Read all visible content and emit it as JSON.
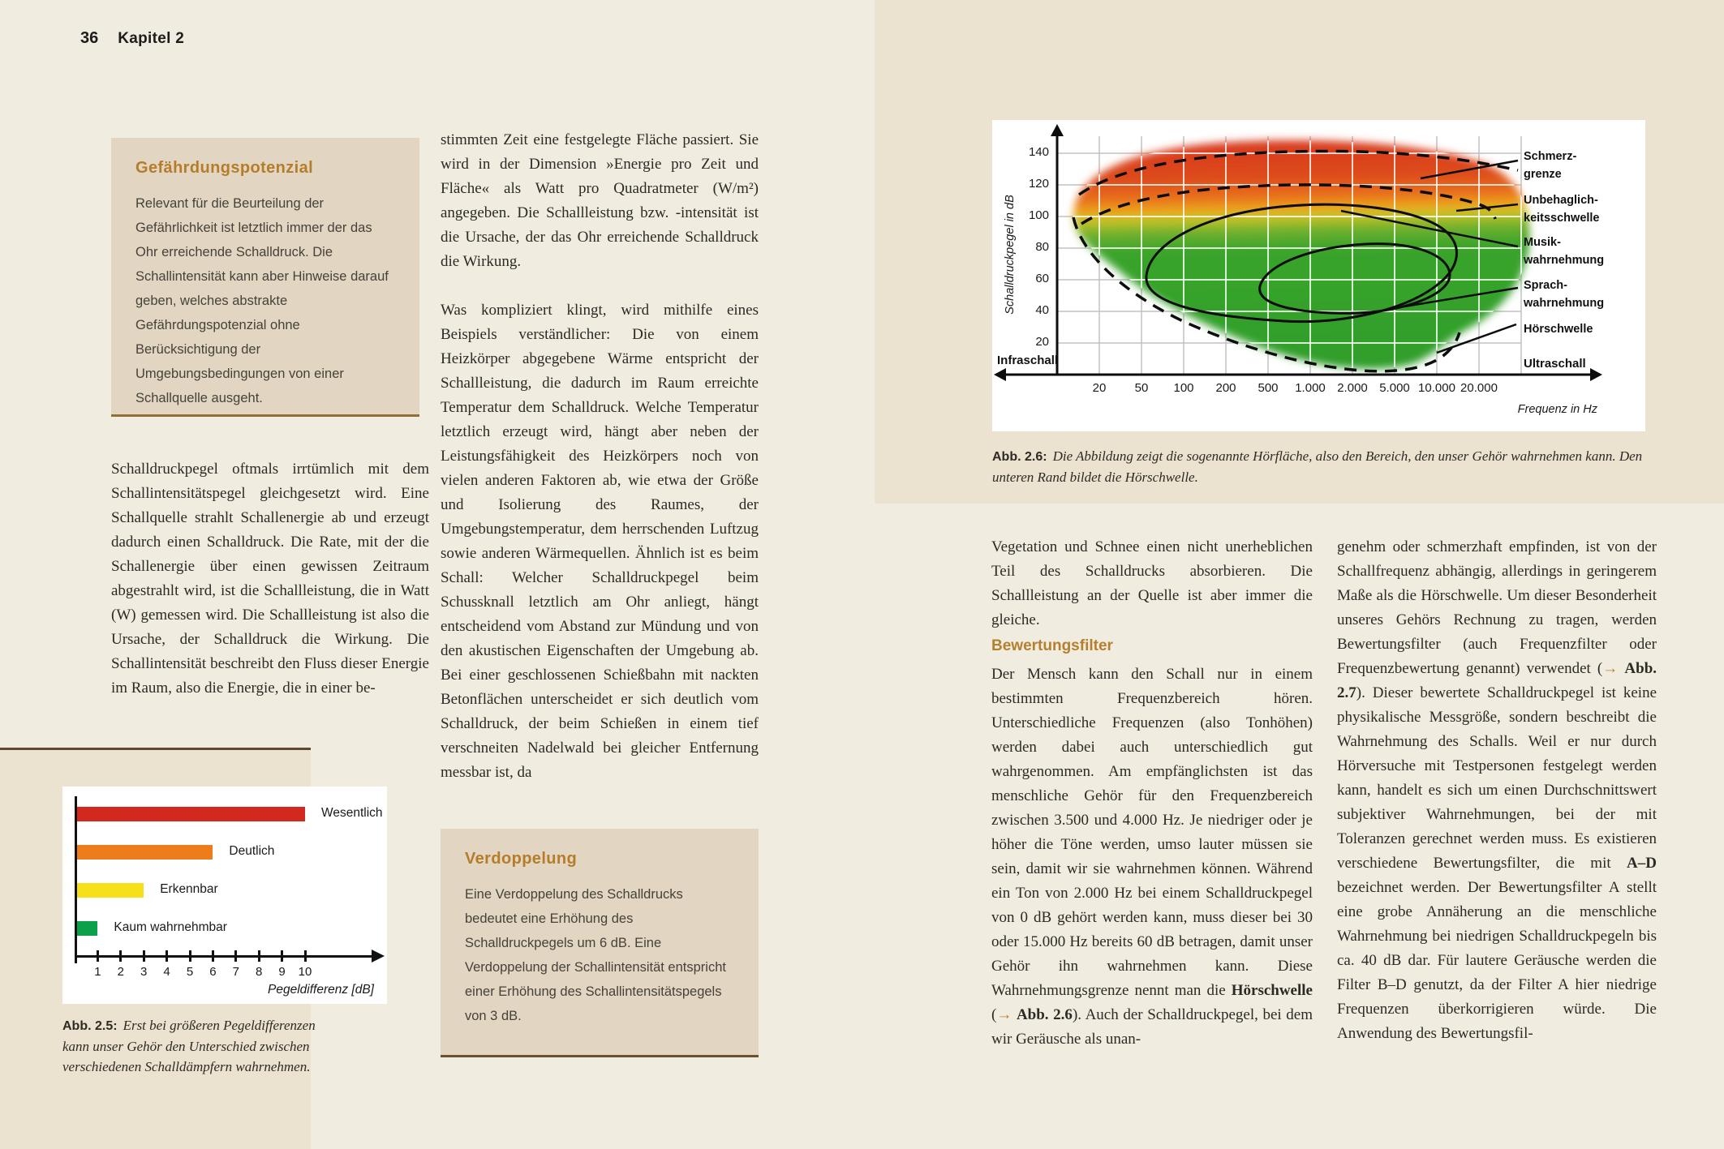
{
  "page": {
    "number": "36",
    "chapter": "Kapitel 2"
  },
  "colors": {
    "page_background": "#f1ece0",
    "figure_panel": "#ebe2cf",
    "infobox_background": "#e2d6c2",
    "accent_orange": "#b5802e",
    "rule_brown": "#5f4833"
  },
  "left_page": {
    "box_hazard": {
      "title": "Gefährdungspotenzial",
      "body": "Relevant für die Beurteilung der Gefährlichkeit ist letztlich immer der das Ohr erreichende Schalldruck. Die Schallintensität kann aber Hinweise darauf geben, welches abstrakte Gefährdungspotenzial ohne Berücksichtigung der Umgebungsbedingungen von einer Schallquelle ausgeht."
    },
    "col1_p1": "Schalldruckpegel oftmals irrtümlich mit dem Schallintensitätspegel gleichgesetzt wird. Eine Schallquelle strahlt Schallenergie ab und erzeugt dadurch einen Schalldruck. Die Rate, mit der die Schallenergie über einen gewissen Zeitraum abgestrahlt wird, ist die Schallleistung, die in Watt (W) gemessen wird. Die Schallleistung ist also die Ursache, der Schalldruck die Wirkung. Die Schallintensität beschreibt den Fluss dieser Energie im Raum, also die Energie, die in einer be-",
    "col2_p1": "stimmten Zeit eine festgelegte Fläche passiert. Sie wird in der Dimension »Energie pro Zeit und Fläche« als Watt pro Quadratmeter (W/m²) angegeben. Die Schallleistung bzw. -intensität ist die Ursache, der das Ohr erreichende Schalldruck die Wirkung.",
    "col2_p2": "Was kompliziert klingt, wird mithilfe eines Beispiels verständlicher: Die von einem Heizkörper abgegebene Wärme entspricht der Schallleistung, die dadurch im Raum erreichte Temperatur dem Schalldruck. Welche Temperatur letztlich erzeugt wird, hängt aber neben der Leistungsfähigkeit des Heizkörpers noch von vielen anderen Faktoren ab, wie etwa der Größe und Isolierung des Raumes, der Umgebungstemperatur, dem herrschenden Luftzug sowie anderen Wärmequellen. Ähnlich ist es beim Schall: Welcher Schalldruckpegel beim Schussknall letztlich am Ohr anliegt, hängt entscheidend vom Abstand zur Mündung und von den akustischen Eigenschaften der Umgebung ab. Bei einer geschlossenen Schießbahn mit nackten Betonflächen unterscheidet er sich deutlich vom Schalldruck, der beim Schießen in einem tief verschneiten Nadelwald bei gleicher Entfernung messbar ist, da",
    "box_doubling": {
      "title": "Verdoppelung",
      "body": "Eine Verdoppelung des Schalldrucks bedeutet eine Erhöhung des Schalldruckpegels um 6 dB. Eine Verdoppelung der Schallintensität entspricht einer Erhöhung des Schallintensitätspegels von 3 dB."
    },
    "fig25_caption": {
      "label": "Abb. 2.5:",
      "text": "Erst bei größeren Pegeldifferenzen kann unser Gehör den Unterschied zwischen verschiedenen Schalldämpfern wahrnehmen."
    }
  },
  "right_page": {
    "fig26_caption": {
      "label": "Abb. 2.6:",
      "text": "Die Abbildung zeigt die sogenannte Hörfläche, also den Bereich, den unser Gehör wahrnehmen kann. Den unteren Rand bildet die Hörschwelle."
    },
    "col1_p1": "Vegetation und Schnee einen nicht unerheblichen Teil des Schalldrucks absorbieren. Die Schallleistung an der Quelle ist aber immer die gleiche.",
    "heading": "Bewertungsfilter",
    "col1_p2_segments": [
      {
        "t": "Der Mensch kann den Schall nur in einem bestimmten Frequenzbereich hören. Unterschiedliche Frequenzen (also Tonhöhen) werden dabei auch unterschiedlich gut wahrgenommen. Am empfänglichsten ist das menschliche Gehör für den Frequenzbereich zwischen 3.500 und 4.000 Hz. Je niedriger oder je höher die Töne werden, umso lauter müssen sie sein, damit wir sie wahrnehmen können. Während ein Ton von 2.000 Hz bei einem Schalldruckpegel von 0 dB gehört werden kann, muss dieser bei 30 oder 15.000 Hz bereits 60 dB betragen, damit unser Gehör ihn wahrnehmen kann. Diese Wahrnehmungsgrenze nennt man die ",
        "s": "n"
      },
      {
        "t": "Hörschwelle",
        "s": "b"
      },
      {
        "t": " (",
        "s": "n"
      },
      {
        "t": "→",
        "s": "a"
      },
      {
        "t": " ",
        "s": "n"
      },
      {
        "t": "Abb. 2.6",
        "s": "b"
      },
      {
        "t": "). Auch der Schalldruckpegel, bei dem wir Geräusche als unan-",
        "s": "n"
      }
    ],
    "col2_segments": [
      {
        "t": "genehm oder schmerzhaft empfinden, ist von der Schallfrequenz abhängig, allerdings in geringerem Maße als die Hörschwelle. Um dieser Besonderheit unseres Gehörs Rechnung zu tragen, werden Bewertungsfilter (auch Frequenzfilter oder Frequenzbewertung genannt) verwendet (",
        "s": "n"
      },
      {
        "t": "→",
        "s": "a"
      },
      {
        "t": " ",
        "s": "n"
      },
      {
        "t": "Abb. 2.7",
        "s": "b"
      },
      {
        "t": "). Dieser bewertete Schalldruckpegel ist keine physikalische Messgröße, sondern beschreibt die Wahrnehmung des Schalls. Weil er nur durch Hörversuche mit Testpersonen festgelegt werden kann, handelt es sich um einen Durchschnittswert subjektiver Wahrnehmungen, bei der mit Toleranzen gerechnet werden muss. Es existieren verschiedene Bewertungsfilter, die mit ",
        "s": "n"
      },
      {
        "t": "A–D",
        "s": "b"
      },
      {
        "t": " bezeichnet werden. Der Bewertungsfilter A stellt eine grobe Annäherung an die menschliche Wahrnehmung bei niedrigen Schalldruckpegeln bis ca. 40 dB dar. Für lautere Geräusche werden die Filter B–D genutzt, da der Filter A hier niedrige Frequenzen überkorrigieren würde. Die Anwendung des Bewertungsfil-",
        "s": "n"
      }
    ]
  },
  "chart_data": [
    {
      "type": "bar",
      "figure": "Abb. 2.5",
      "orientation": "horizontal",
      "categories": [
        "Wesentlich",
        "Deutlich",
        "Erkennbar",
        "Kaum wahrnehmbar"
      ],
      "values": [
        10,
        6,
        3,
        1
      ],
      "colors": [
        "#d2281e",
        "#ed7c1a",
        "#f6e019",
        "#0ca04a"
      ],
      "x_ticks": [
        "1",
        "2",
        "3",
        "4",
        "5",
        "6",
        "7",
        "8",
        "9",
        "10"
      ],
      "xlabel": "Pegeldifferenz [dB]",
      "xlim": [
        0,
        11
      ],
      "grid": false
    },
    {
      "type": "area",
      "figure": "Abb. 2.6",
      "name": "Hörfläche",
      "ylabel": "Schalldruckpegel in dB",
      "xlabel": "Frequenz in Hz",
      "y_ticks": [
        140,
        120,
        100,
        80,
        60,
        40,
        20
      ],
      "x_ticks": [
        "20",
        "50",
        "100",
        "200",
        "500",
        "1.000",
        "2.000",
        "5.000",
        "10.000",
        "20.000"
      ],
      "left_label": "Infraschall",
      "right_label": "Ultraschall",
      "callouts": [
        [
          "Schmerz-",
          "grenze"
        ],
        [
          "Unbehaglich-",
          "keitsschwelle"
        ],
        [
          "Musik-",
          "wahrnehmung"
        ],
        [
          "Sprach-",
          "wahrnehmung"
        ],
        [
          "Hörschwelle"
        ]
      ],
      "regions_note": "Grün: hörbarer Bereich; obere gestrichelte Linien: Schmerzgrenze (~140 dB) und Unbehaglichkeitsschwelle (~120 dB); untere gestrichelte Linie: Hörschwelle; innere Konturen: Musik- und Sprachwahrnehmung",
      "grid": true
    }
  ]
}
